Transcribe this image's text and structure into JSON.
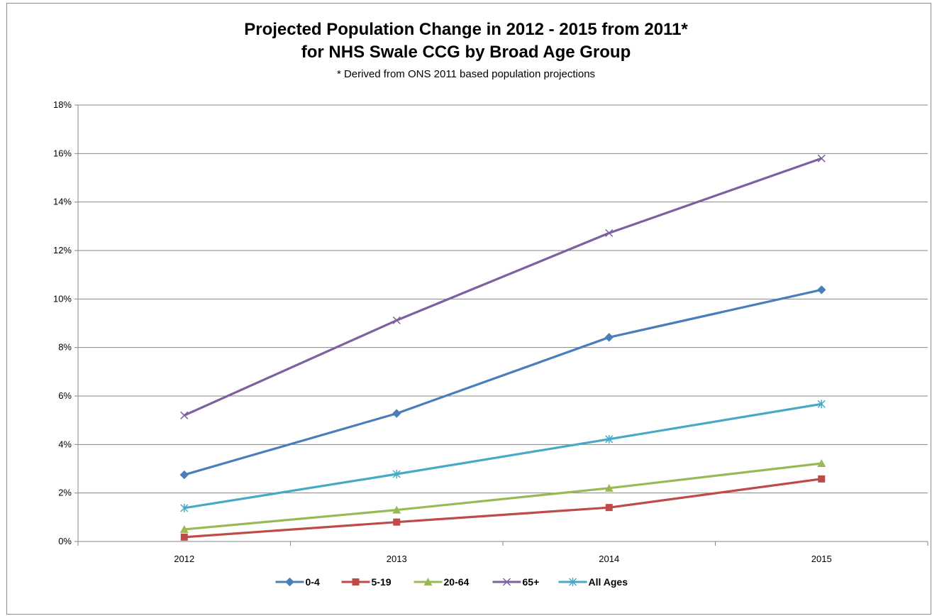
{
  "chart_data": {
    "type": "line",
    "title_line1": "Projected Population Change in 2012 - 2015 from 2011*",
    "title_line2": "for NHS Swale CCG by Broad Age Group",
    "subtitle": "* Derived from ONS 2011 based population projections",
    "xlabel": "",
    "ylabel": "",
    "categories": [
      "2012",
      "2013",
      "2014",
      "2015"
    ],
    "ylim": [
      0,
      18
    ],
    "yticks": [
      0,
      2,
      4,
      6,
      8,
      10,
      12,
      14,
      16,
      18
    ],
    "ytick_labels": [
      "0%",
      "2%",
      "4%",
      "6%",
      "8%",
      "10%",
      "12%",
      "14%",
      "16%",
      "18%"
    ],
    "grid": true,
    "legend_position": "bottom",
    "series": [
      {
        "name": "0-4",
        "values": [
          2.75,
          5.28,
          8.42,
          10.38
        ],
        "color": "#4a7ebb",
        "marker": "diamond"
      },
      {
        "name": "5-19",
        "values": [
          0.18,
          0.8,
          1.4,
          2.58
        ],
        "color": "#be4b48",
        "marker": "square"
      },
      {
        "name": "20-64",
        "values": [
          0.5,
          1.3,
          2.2,
          3.22
        ],
        "color": "#98b954",
        "marker": "triangle"
      },
      {
        "name": "65+",
        "values": [
          5.2,
          9.12,
          12.72,
          15.8
        ],
        "color": "#7d60a0",
        "marker": "x"
      },
      {
        "name": "All Ages",
        "values": [
          1.38,
          2.78,
          4.22,
          5.67
        ],
        "color": "#46aac5",
        "marker": "star"
      }
    ]
  }
}
